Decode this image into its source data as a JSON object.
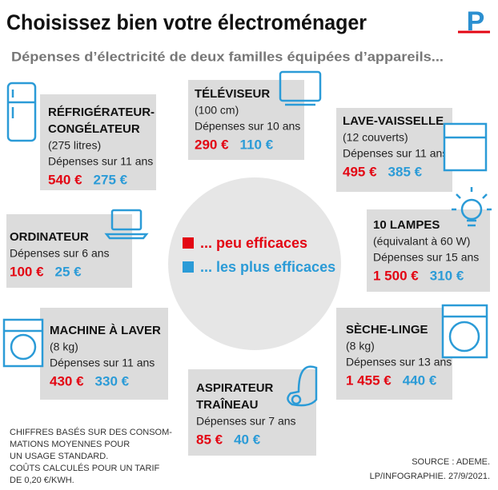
{
  "header": {
    "title": "Choisissez bien votre électroménager",
    "subtitle": "Dépenses d’électricité de deux familles équipées d’appareils...",
    "logo": "P"
  },
  "legend": {
    "high": "... peu efficaces",
    "low": "... les plus efficaces"
  },
  "appliances": [
    {
      "name": [
        "RÉFRIGÉRATEUR-",
        "CONGÉLATEUR"
      ],
      "details": [
        "(275 litres)",
        "Dépenses sur 11 ans"
      ],
      "high": "540 €",
      "low": "275 €"
    },
    {
      "name": [
        "TÉLÉVISEUR"
      ],
      "details": [
        "(100 cm)",
        "Dépenses sur 10 ans"
      ],
      "high": "290 €",
      "low": "110 €"
    },
    {
      "name": [
        "LAVE-VAISSELLE"
      ],
      "details": [
        "(12 couverts)",
        "Dépenses sur 11 ans"
      ],
      "high": "495 €",
      "low": "385 €"
    },
    {
      "name": [
        "ORDINATEUR"
      ],
      "details": [
        "Dépenses sur 6 ans"
      ],
      "high": "100 €",
      "low": "25 €"
    },
    {
      "name": [
        "10 LAMPES"
      ],
      "details": [
        "(équivalant à 60 W)",
        "Dépenses sur 15 ans"
      ],
      "high": "1 500 €",
      "low": "310 €"
    },
    {
      "name": [
        "MACHINE À LAVER"
      ],
      "details": [
        "(8 kg)",
        "Dépenses sur 11 ans"
      ],
      "high": "430 €",
      "low": "330 €"
    },
    {
      "name": [
        "ASPIRATEUR",
        "TRAÎNEAU"
      ],
      "details": [
        "Dépenses sur 7 ans"
      ],
      "high": "85 €",
      "low": "40 €"
    },
    {
      "name": [
        "SÈCHE-LINGE"
      ],
      "details": [
        "(8 kg)",
        "Dépenses sur 13 ans"
      ],
      "high": "1 455 €",
      "low": "440 €"
    }
  ],
  "footnote": [
    "CHIFFRES BASÉS SUR DES CONSOM-",
    "MATIONS  MOYENNES POUR",
    "UN USAGE STANDARD.",
    "COÛTS CALCULÉS POUR UN TARIF",
    "DE 0,20 €/KWH."
  ],
  "source": [
    "SOURCE : ADEME.",
    "LP/INFOGRAPHIE. 27/9/2021."
  ]
}
